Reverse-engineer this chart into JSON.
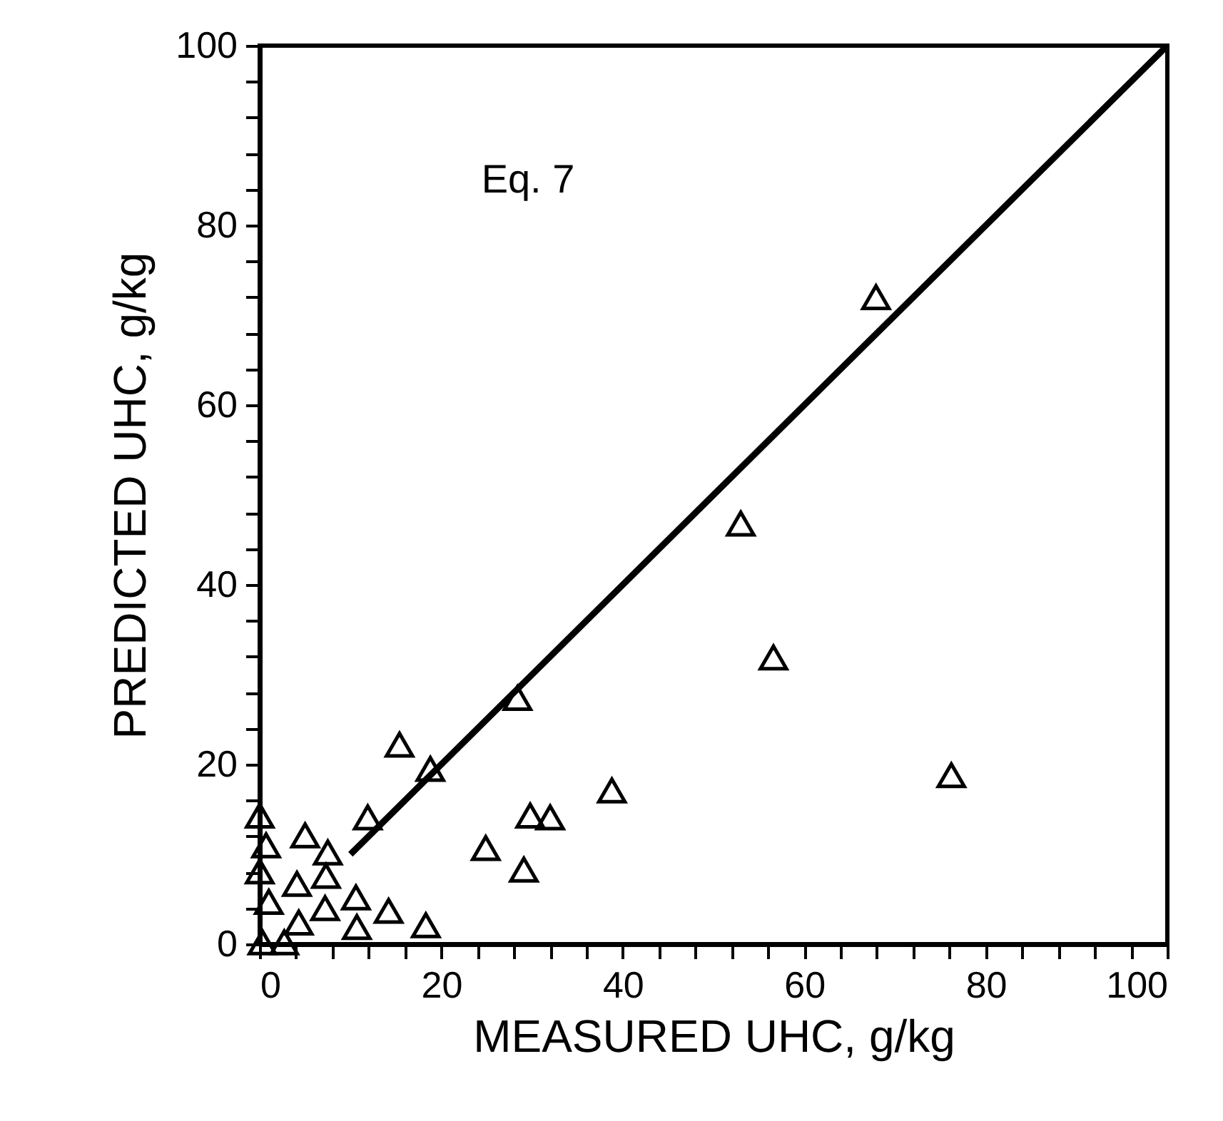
{
  "chart_data": {
    "type": "scatter",
    "xlabel": "MEASURED UHC, g/kg",
    "ylabel": "PREDICTED UHC, g/kg",
    "annotations": [
      "Eq. 7"
    ],
    "xlim": [
      0,
      100
    ],
    "ylim": [
      0,
      100
    ],
    "xticks": [
      0,
      {
        "value": 4,
        "label": null
      },
      {
        "value": 8,
        "label": null
      },
      {
        "value": 12,
        "label": null
      },
      {
        "value": 16,
        "label": null
      },
      20,
      {
        "value": 24,
        "label": null
      },
      {
        "value": 28,
        "label": null
      },
      {
        "value": 32,
        "label": null
      },
      {
        "value": 36,
        "label": null
      },
      40,
      {
        "value": 44,
        "label": null
      },
      {
        "value": 48,
        "label": null
      },
      {
        "value": 52,
        "label": null
      },
      {
        "value": 56,
        "label": null
      },
      60,
      {
        "value": 64,
        "label": null
      },
      {
        "value": 68,
        "label": null
      },
      {
        "value": 72,
        "label": null
      },
      {
        "value": 76,
        "label": null
      },
      80,
      {
        "value": 84,
        "label": null
      },
      {
        "value": 88,
        "label": null
      },
      {
        "value": 92,
        "label": null
      },
      {
        "value": 96,
        "label": null
      },
      100
    ],
    "yticks": [
      0,
      {
        "value": 4,
        "label": null
      },
      {
        "value": 8,
        "label": null
      },
      {
        "value": 12,
        "label": null
      },
      {
        "value": 16,
        "label": null
      },
      20,
      {
        "value": 24,
        "label": null
      },
      {
        "value": 28,
        "label": null
      },
      {
        "value": 32,
        "label": null
      },
      {
        "value": 36,
        "label": null
      },
      40,
      {
        "value": 44,
        "label": null
      },
      {
        "value": 48,
        "label": null
      },
      {
        "value": 52,
        "label": null
      },
      {
        "value": 56,
        "label": null
      },
      60,
      {
        "value": 64,
        "label": null
      },
      {
        "value": 68,
        "label": null
      },
      {
        "value": 72,
        "label": null
      },
      {
        "value": 76,
        "label": null
      },
      80,
      {
        "value": 84,
        "label": null
      },
      {
        "value": 88,
        "label": null
      },
      {
        "value": 92,
        "label": null
      },
      {
        "value": 96,
        "label": null
      },
      100
    ],
    "grid": false,
    "series": [
      {
        "marker": "triangle",
        "color": "#000000",
        "x": [
          67.9,
          53.0,
          56.6,
          76.2,
          38.8,
          32.0,
          29.8,
          28.4,
          24.9,
          29.1,
          18.8,
          15.4,
          11.9,
          18.3,
          14.2,
          10.7,
          10.6,
          7.3,
          5.0,
          0,
          0.7,
          0,
          4.1,
          1.0,
          4.3,
          2.7,
          0.3,
          7.2,
          7.5
        ],
        "values": [
          72.0,
          46.8,
          31.9,
          18.8,
          17.1,
          14.1,
          14.3,
          27.4,
          10.7,
          8.3,
          19.5,
          22.2,
          14.1,
          2.1,
          3.7,
          1.9,
          5.2,
          7.6,
          12.1,
          14.3,
          11.0,
          8.1,
          6.7,
          4.7,
          2.4,
          0.2,
          0.2,
          4.0,
          10.2
        ]
      },
      {
        "type": "line",
        "color": "#000000",
        "line_style": "solid",
        "x": [
          10,
          100
        ],
        "values": [
          10,
          100
        ]
      }
    ]
  }
}
